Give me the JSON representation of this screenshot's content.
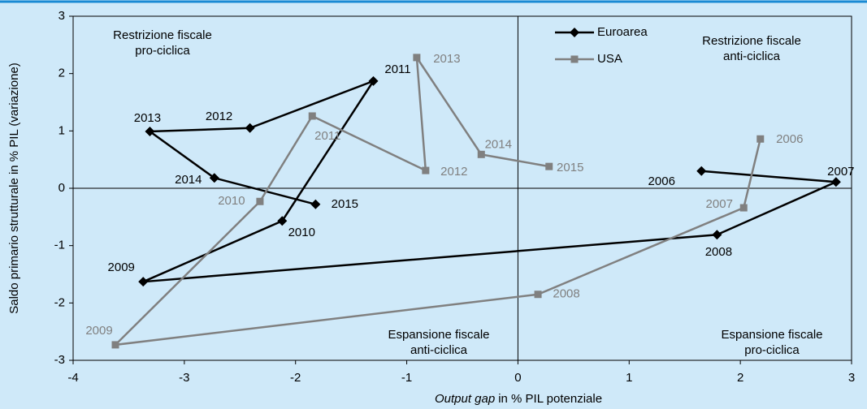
{
  "chart_data": {
    "type": "connected-scatter",
    "x_label": [
      "Output gap",
      "in % PIL potenziale"
    ],
    "y_label": "Saldo primario strutturale in % PIL (variazione)",
    "xlim": [
      -4,
      3
    ],
    "xticks": [
      -4,
      -3,
      -2,
      -1,
      0,
      1,
      2,
      3
    ],
    "ylim": [
      -3,
      3
    ],
    "yticks": [
      -3,
      -2,
      -1,
      0,
      1,
      2,
      3
    ],
    "legend": "top-right",
    "annotations": [
      [
        "Restrizione fiscale",
        "pro-ciclica"
      ],
      [
        "Restrizione fiscale",
        "anti-ciclica"
      ],
      [
        "Espansione fiscale",
        "anti-ciclica"
      ],
      [
        "Espansione fiscale",
        "pro-ciclica"
      ]
    ],
    "series": [
      {
        "name": "Euroarea",
        "color": "#000000",
        "marker": "diamond",
        "point_labels": [
          "2006",
          "2007",
          "2008",
          "2009",
          "2010",
          "2011",
          "2012",
          "2013",
          "2014",
          "2015"
        ],
        "x": [
          1.65,
          2.86,
          1.79,
          -3.37,
          -2.12,
          -1.3,
          -2.41,
          -3.31,
          -2.73,
          -1.82
        ],
        "values": [
          0.3,
          0.11,
          -0.81,
          -1.63,
          -0.57,
          1.87,
          1.05,
          0.99,
          0.18,
          -0.28
        ]
      },
      {
        "name": "USA",
        "color": "#808080",
        "marker": "square",
        "point_labels": [
          "2006",
          "2007",
          "2008",
          "2009",
          "2010",
          "2011",
          "2012",
          "2013",
          "2014",
          "2015"
        ],
        "x": [
          2.18,
          2.03,
          0.18,
          -3.62,
          -2.32,
          -1.85,
          -0.83,
          -0.91,
          -0.33,
          0.28
        ],
        "values": [
          0.86,
          -0.34,
          -1.85,
          -2.73,
          -0.23,
          1.26,
          0.31,
          2.28,
          0.59,
          0.38
        ]
      }
    ]
  }
}
